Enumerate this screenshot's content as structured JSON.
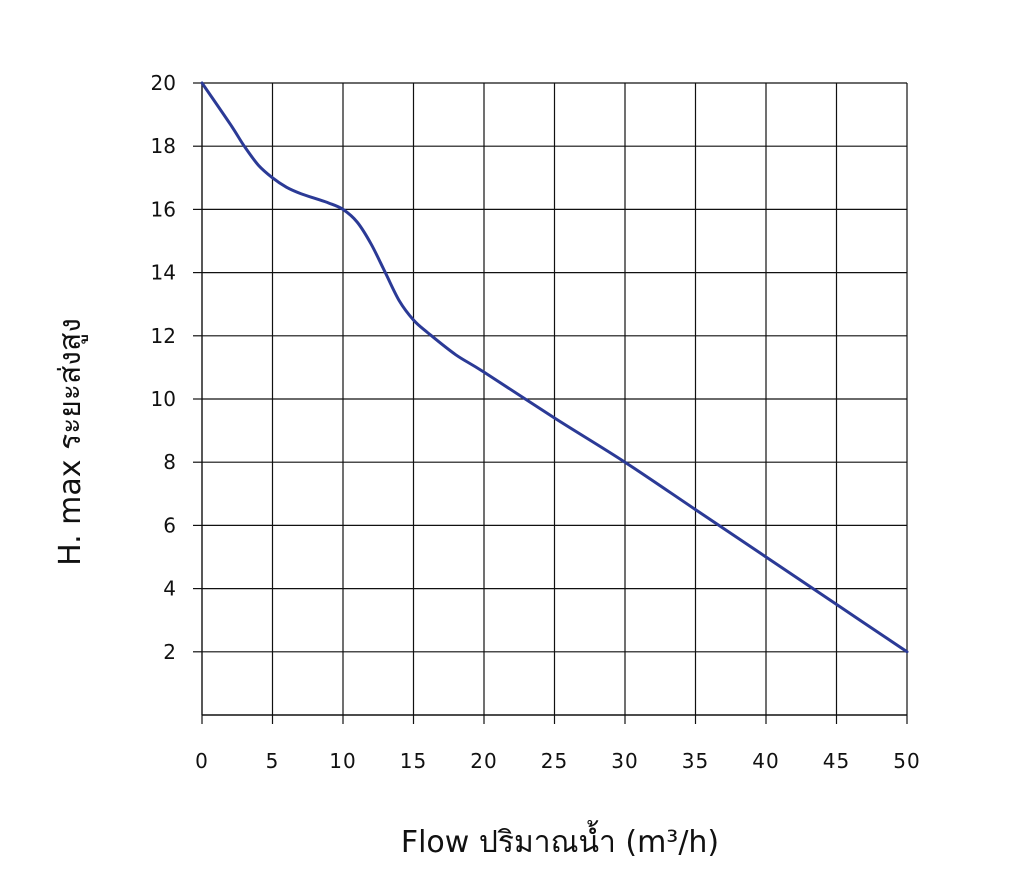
{
  "chart_data": {
    "type": "line",
    "xlabel": "Flow  ปริมาณน้ำ (m³/h)",
    "ylabel": "H. max  ระยะส่งสูง",
    "xlim": [
      0,
      50
    ],
    "ylim": [
      0,
      20
    ],
    "x_ticks": [
      "0",
      "5",
      "10",
      "15",
      "20",
      "25",
      "30",
      "35",
      "40",
      "45",
      "50"
    ],
    "y_ticks": [
      "2",
      "4",
      "6",
      "8",
      "10",
      "12",
      "14",
      "16",
      "18",
      "20"
    ],
    "grid": true,
    "line_color": "#2b3a96",
    "series": [
      {
        "x": [
          0,
          2,
          3,
          4,
          5,
          6,
          7,
          8,
          9,
          10,
          11,
          12,
          13,
          14,
          15,
          16,
          18,
          20,
          25,
          30,
          35,
          40,
          45,
          50
        ],
        "values": [
          20,
          18.7,
          18.0,
          17.4,
          17.0,
          16.7,
          16.5,
          16.35,
          16.2,
          16.0,
          15.6,
          14.9,
          14.0,
          13.1,
          12.5,
          12.1,
          11.4,
          10.85,
          9.4,
          8.0,
          6.5,
          5.0,
          3.5,
          2.0
        ]
      }
    ]
  }
}
